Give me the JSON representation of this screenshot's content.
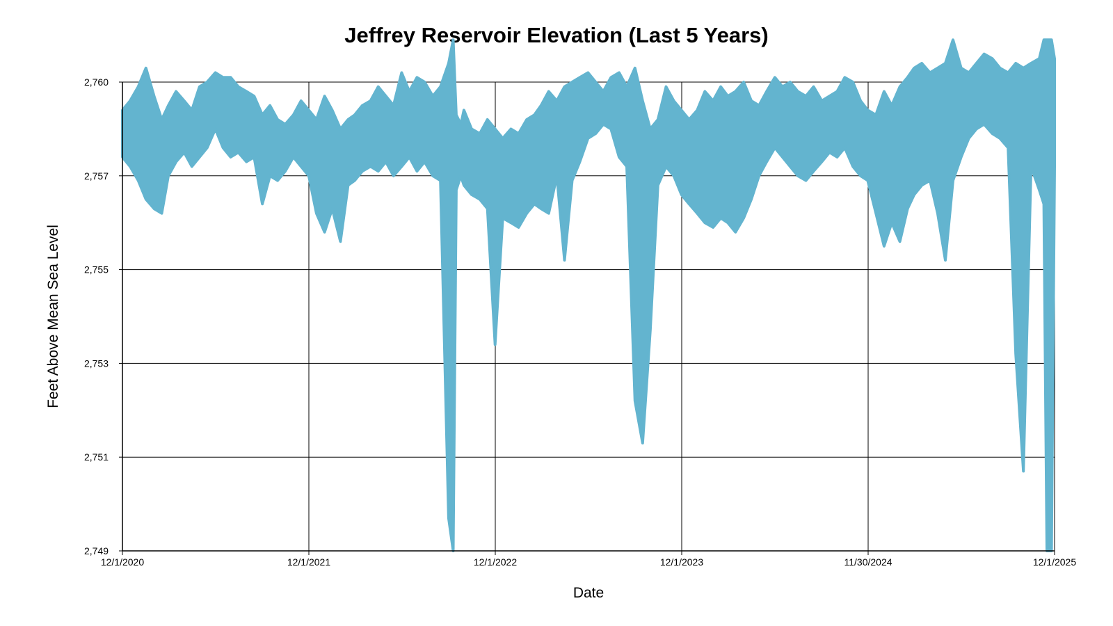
{
  "chart_data": {
    "type": "area",
    "title": "Jeffrey Reservoir Elevation (Last 5 Years)",
    "xlabel": "Date",
    "ylabel": "Feet Above Mean Sea Level",
    "x_ticks": [
      "12/1/2020",
      "12/1/2021",
      "12/1/2022",
      "12/1/2023",
      "11/30/2024",
      "12/1/2025"
    ],
    "y_ticks": [
      "2,749",
      "2,751",
      "2,753",
      "2,755",
      "2,757",
      "2,760"
    ],
    "x_range": [
      "2020-12-01",
      "2025-12-01"
    ],
    "ylim": [
      2749,
      2759
    ],
    "grid": true,
    "legend": "none",
    "series_color": "#63b4cf",
    "series": [
      {
        "x": [
          "2020-12-01",
          "2020-12-16",
          "2021-01-01",
          "2021-01-16",
          "2021-02-01",
          "2021-02-16",
          "2021-03-01",
          "2021-03-16",
          "2021-04-01",
          "2021-04-16",
          "2021-05-01",
          "2021-05-16",
          "2021-06-01",
          "2021-06-16",
          "2021-07-01",
          "2021-07-16",
          "2021-08-01",
          "2021-08-16",
          "2021-09-01",
          "2021-09-16",
          "2021-10-01",
          "2021-10-16",
          "2021-11-01",
          "2021-11-16",
          "2021-12-01",
          "2021-12-16",
          "2022-01-01",
          "2022-01-16",
          "2022-02-01",
          "2022-02-16",
          "2022-03-01",
          "2022-03-16",
          "2022-04-01",
          "2022-04-16",
          "2022-05-01",
          "2022-05-16",
          "2022-06-01",
          "2022-06-16",
          "2022-07-01",
          "2022-07-16",
          "2022-08-01",
          "2022-08-16",
          "2022-09-01",
          "2022-09-10",
          "2022-09-16",
          "2022-09-25",
          "2022-10-01",
          "2022-10-16",
          "2022-11-01",
          "2022-11-16",
          "2022-12-01",
          "2022-12-16",
          "2023-01-01",
          "2023-01-16",
          "2023-02-01",
          "2023-02-16",
          "2023-03-01",
          "2023-03-16",
          "2023-04-01",
          "2023-04-16",
          "2023-05-01",
          "2023-05-16",
          "2023-06-01",
          "2023-06-16",
          "2023-07-01",
          "2023-07-16",
          "2023-08-01",
          "2023-08-16",
          "2023-09-01",
          "2023-09-16",
          "2023-10-01",
          "2023-10-16",
          "2023-11-01",
          "2023-11-16",
          "2023-12-01",
          "2023-12-16",
          "2024-01-01",
          "2024-01-16",
          "2024-02-01",
          "2024-02-16",
          "2024-03-01",
          "2024-03-16",
          "2024-04-01",
          "2024-04-16",
          "2024-05-01",
          "2024-05-16",
          "2024-06-01",
          "2024-06-16",
          "2024-07-01",
          "2024-07-16",
          "2024-08-01",
          "2024-08-16",
          "2024-09-01",
          "2024-09-16",
          "2024-10-01",
          "2024-10-16",
          "2024-11-01",
          "2024-11-16",
          "2024-11-30",
          "2024-12-16",
          "2025-01-01",
          "2025-01-16",
          "2025-02-01",
          "2025-02-16",
          "2025-03-01",
          "2025-03-16",
          "2025-04-01",
          "2025-04-16",
          "2025-05-01",
          "2025-05-16",
          "2025-06-01",
          "2025-06-16",
          "2025-07-01",
          "2025-07-16",
          "2025-08-01",
          "2025-08-16",
          "2025-09-01",
          "2025-09-16",
          "2025-10-01",
          "2025-10-16",
          "2025-11-01",
          "2025-11-10",
          "2025-11-16",
          "2025-11-25",
          "2025-12-01"
        ],
        "y_high": [
          2758.4,
          2758.6,
          2758.9,
          2759.3,
          2758.7,
          2758.2,
          2758.5,
          2758.8,
          2758.6,
          2758.4,
          2758.9,
          2759.0,
          2759.2,
          2759.1,
          2759.1,
          2758.9,
          2758.8,
          2758.7,
          2758.3,
          2758.5,
          2758.2,
          2758.1,
          2758.3,
          2758.6,
          2758.4,
          2758.2,
          2758.7,
          2758.4,
          2758.0,
          2758.2,
          2758.3,
          2758.5,
          2758.6,
          2758.9,
          2758.7,
          2758.5,
          2759.2,
          2758.8,
          2759.1,
          2759.0,
          2758.7,
          2758.9,
          2759.4,
          2759.9,
          2758.3,
          2758.1,
          2758.4,
          2758.0,
          2757.9,
          2758.2,
          2758.0,
          2757.8,
          2758.0,
          2757.9,
          2758.2,
          2758.3,
          2758.5,
          2758.8,
          2758.6,
          2758.9,
          2759.0,
          2759.1,
          2759.2,
          2759.0,
          2758.8,
          2759.1,
          2759.2,
          2758.9,
          2759.3,
          2758.6,
          2758.0,
          2758.2,
          2758.9,
          2758.6,
          2758.4,
          2758.2,
          2758.4,
          2758.8,
          2758.6,
          2758.9,
          2758.7,
          2758.8,
          2759.0,
          2758.6,
          2758.5,
          2758.8,
          2759.1,
          2758.9,
          2759.0,
          2758.8,
          2758.7,
          2758.9,
          2758.6,
          2758.7,
          2758.8,
          2759.1,
          2759.0,
          2758.6,
          2758.4,
          2758.3,
          2758.8,
          2758.5,
          2758.9,
          2759.1,
          2759.3,
          2759.4,
          2759.2,
          2759.3,
          2759.4,
          2759.9,
          2759.3,
          2759.2,
          2759.4,
          2759.6,
          2759.5,
          2759.3,
          2759.2,
          2759.4,
          2759.3,
          2759.4,
          2759.5,
          2759.9,
          2759.9,
          2759.9,
          2759.5
        ],
        "y_low": [
          2757.4,
          2757.2,
          2756.9,
          2756.5,
          2756.3,
          2756.2,
          2757.0,
          2757.3,
          2757.5,
          2757.2,
          2757.4,
          2757.6,
          2758.0,
          2757.6,
          2757.4,
          2757.5,
          2757.3,
          2757.4,
          2756.4,
          2757.0,
          2756.9,
          2757.1,
          2757.4,
          2757.2,
          2757.0,
          2756.2,
          2755.8,
          2756.3,
          2755.6,
          2756.8,
          2756.9,
          2757.1,
          2757.2,
          2757.1,
          2757.3,
          2757.0,
          2757.2,
          2757.4,
          2757.1,
          2757.3,
          2757.0,
          2756.9,
          2749.7,
          2749.0,
          2756.7,
          2757.0,
          2756.8,
          2756.6,
          2756.5,
          2756.3,
          2753.4,
          2756.1,
          2756.0,
          2755.9,
          2756.2,
          2756.4,
          2756.3,
          2756.2,
          2757.0,
          2755.2,
          2756.9,
          2757.3,
          2757.8,
          2757.9,
          2758.1,
          2758.0,
          2757.4,
          2757.2,
          2752.2,
          2751.3,
          2753.7,
          2756.8,
          2757.2,
          2757.0,
          2756.6,
          2756.4,
          2756.2,
          2756.0,
          2755.9,
          2756.1,
          2756.0,
          2755.8,
          2756.1,
          2756.5,
          2757.0,
          2757.3,
          2757.6,
          2757.4,
          2757.2,
          2757.0,
          2756.9,
          2757.1,
          2757.3,
          2757.5,
          2757.4,
          2757.6,
          2757.2,
          2757.0,
          2756.9,
          2756.2,
          2755.5,
          2756.0,
          2755.6,
          2756.3,
          2756.6,
          2756.8,
          2756.9,
          2756.2,
          2755.2,
          2756.9,
          2757.4,
          2757.8,
          2758.0,
          2758.1,
          2757.9,
          2757.8,
          2757.6,
          2753.2,
          2750.7,
          2757.2,
          2756.7,
          2756.4,
          2749.0,
          2749.0,
          2757.2
        ]
      }
    ]
  }
}
